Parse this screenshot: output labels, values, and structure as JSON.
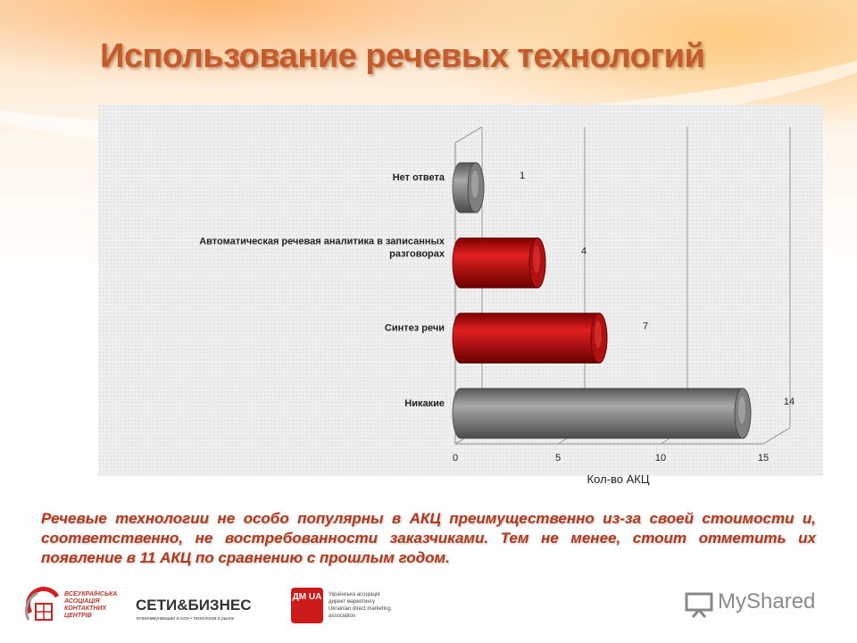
{
  "slide": {
    "title": "Использование речевых технологий",
    "note": "Речевые технологии не особо популярны в АКЦ преимущественно из-за своей стоимости и, соответственно, не востребованности заказчиками. Тем не менее, стоит отметить их появление в 11 АКЦ по сравнению с прошлым годом."
  },
  "chart_data": {
    "type": "bar",
    "orientation": "horizontal",
    "style": "3d-cylinder",
    "categories": [
      "Нет ответа",
      "Автоматическая речевая аналитика в записанных разговорах",
      "Синтез речи",
      "Никакие"
    ],
    "values": [
      1,
      4,
      7,
      14
    ],
    "data_labels": [
      "1",
      "4",
      "7",
      "14"
    ],
    "bar_colors": [
      "#8a8a8a",
      "#cc1010",
      "#cc1010",
      "#8a8a8a"
    ],
    "xlabel": "Кол-во АКЦ",
    "ylabel": "",
    "xlim": [
      0,
      15
    ],
    "x_ticks": [
      "0",
      "5",
      "10",
      "15"
    ],
    "grid": "vertical"
  },
  "logos": {
    "logo1": [
      "ВСЕУКРАЇНСЬКА",
      "АСОЦІАЦІЯ",
      "КОНТАКТНИХ",
      "ЦЕНТРІВ"
    ],
    "logo2": "СЕТИ&БИЗНЕС",
    "logo2_sub": "телекоммуникации и сети • технологии и рынок",
    "logo3_mark": "ДМ UA",
    "logo3": [
      "Українська асоціація",
      "директ маркетингу",
      "Ukrainian direct marketing",
      "association"
    ],
    "logo4": "MyShared"
  },
  "colors": {
    "title": "#c55a2a",
    "note": "#b23a1c",
    "red_bar": "#cc1010",
    "gray_bar": "#8a8a8a"
  }
}
